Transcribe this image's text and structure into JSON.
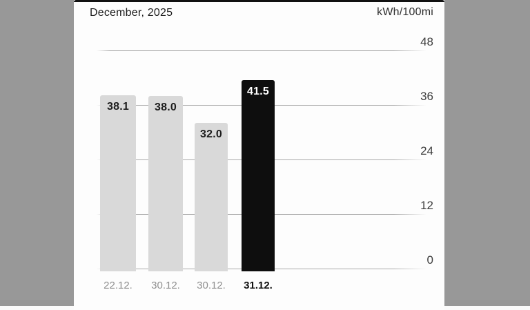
{
  "chart_data": {
    "type": "bar",
    "title": "December, 2025",
    "ylabel": "kWh/100mi",
    "categories": [
      "22.12.",
      "30.12.",
      "30.12.",
      "31.12."
    ],
    "values": [
      38.1,
      38.0,
      32.0,
      41.5
    ],
    "value_labels": [
      "38.1",
      "38.0",
      "32.0",
      "41.5"
    ],
    "highlighted_index": 3,
    "highlighted_category": "31.12.",
    "y_ticks": [
      48,
      36,
      24,
      12,
      0
    ],
    "ylim": [
      0,
      48
    ],
    "grid": true,
    "legend": "none",
    "y_axis_side": "right",
    "colors": {
      "bar_default": "#d9d9d9",
      "bar_highlight": "#0e0e0e",
      "value_label_default": "#1d1d1d",
      "value_label_highlight": "#ffffff",
      "pillar_background": "#989898",
      "card_background": "#fdfdfd"
    }
  }
}
